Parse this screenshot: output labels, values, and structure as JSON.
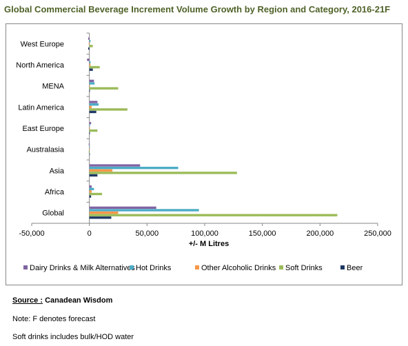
{
  "chart_data": {
    "type": "bar",
    "orientation": "horizontal",
    "title": "Global Commercial Beverage Increment Volume Growth by Region and Category, 2016-21F",
    "xlabel": "+/- M Litres",
    "ylabel": "",
    "xlim": [
      -50000,
      250000
    ],
    "x_ticks": [
      -50000,
      0,
      50000,
      100000,
      150000,
      200000,
      250000
    ],
    "x_tick_labels": [
      "-50,000",
      "0",
      "50,000",
      "100,000",
      "150,000",
      "200,000",
      "250,000"
    ],
    "grid": false,
    "legend_position": "bottom",
    "categories": [
      "West Europe",
      "North America",
      "MENA",
      "Latin America",
      "East Europe",
      "Australasia",
      "Asia",
      "Africa",
      "Global"
    ],
    "series": [
      {
        "name": "Dairy Drinks & Milk Alternatives",
        "color": "#8064a2",
        "values": [
          -1000,
          -2000,
          4000,
          7000,
          1500,
          -500,
          44000,
          2000,
          58000
        ]
      },
      {
        "name": "Hot Drinks",
        "color": "#4bacc6",
        "values": [
          1000,
          1000,
          4500,
          8000,
          500,
          0,
          77000,
          4000,
          95000
        ]
      },
      {
        "name": "Other Alcoholic Drinks",
        "color": "#f79646",
        "values": [
          -500,
          1000,
          500,
          2000,
          500,
          0,
          20000,
          2000,
          25000
        ]
      },
      {
        "name": "Soft Drinks",
        "color": "#9bbb59",
        "values": [
          3000,
          9000,
          25000,
          33000,
          7000,
          -500,
          128000,
          11000,
          215000
        ]
      },
      {
        "name": "Beer",
        "color": "#1f3864",
        "values": [
          -1000,
          3000,
          500,
          6000,
          500,
          0,
          7000,
          1500,
          19000
        ]
      }
    ]
  },
  "notes": {
    "source_label": "Source :",
    "source_value": "Canadean Wisdom",
    "forecast_note": "Note: F denotes forecast",
    "soft_drinks_note": "Soft drinks includes bulk/HOD water"
  }
}
